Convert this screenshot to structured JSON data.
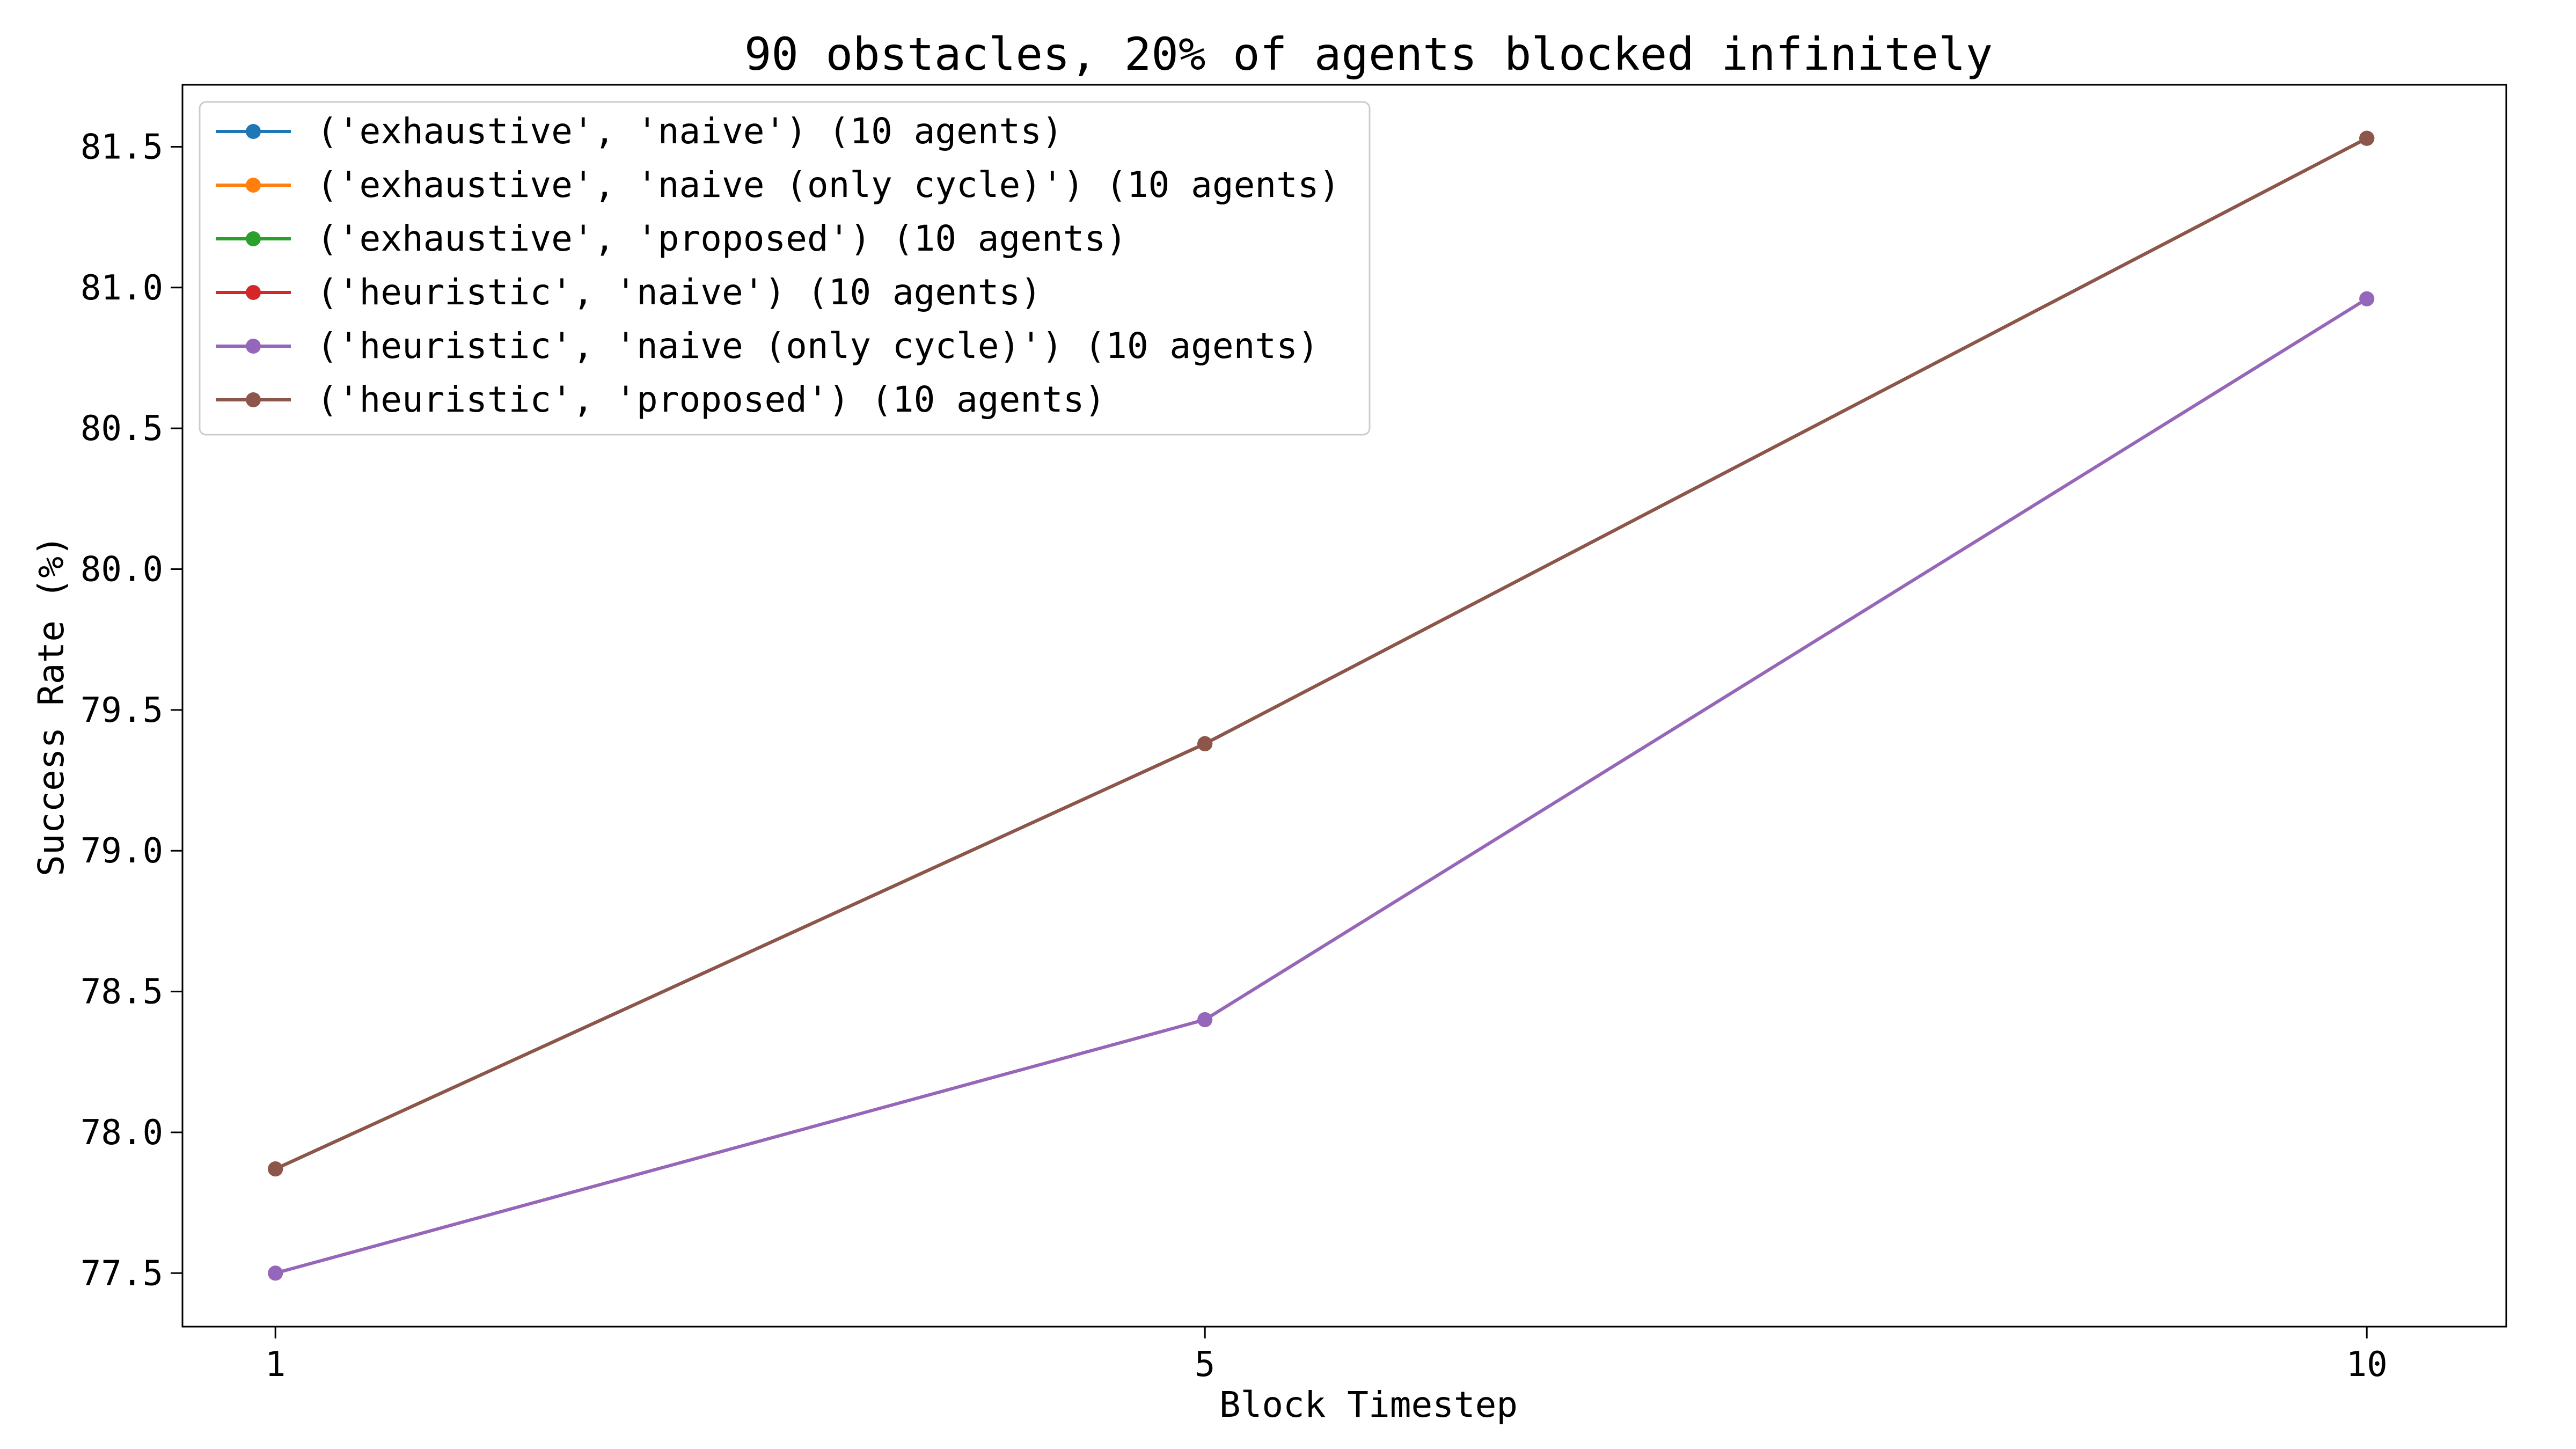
{
  "chart_data": {
    "type": "line",
    "title": "90 obstacles, 20% of agents blocked infinitely",
    "xlabel": "Block Timestep",
    "ylabel": "Success Rate (%)",
    "x": [
      1,
      5,
      10
    ],
    "x_ticks": [
      "1",
      "5",
      "10"
    ],
    "xlim": [
      0.6,
      10.6
    ],
    "y_ticks": [
      "77.5",
      "78.0",
      "78.5",
      "79.0",
      "79.5",
      "80.0",
      "80.5",
      "81.0",
      "81.5"
    ],
    "y_tick_values": [
      77.5,
      78.0,
      78.5,
      79.0,
      79.5,
      80.0,
      80.5,
      81.0,
      81.5
    ],
    "ylim": [
      77.31,
      81.72
    ],
    "grid": false,
    "legend_position": "top-left",
    "series": [
      {
        "name": "('exhaustive', 'naive') (10 agents)",
        "color": "#1f77b4",
        "values": [
          77.87,
          79.38,
          81.53
        ]
      },
      {
        "name": "('exhaustive', 'naive (only cycle)') (10 agents)",
        "color": "#ff7f0e",
        "values": [
          77.5,
          78.4,
          80.96
        ]
      },
      {
        "name": "('exhaustive', 'proposed') (10 agents)",
        "color": "#2ca02c",
        "values": [
          77.87,
          79.38,
          81.53
        ]
      },
      {
        "name": "('heuristic', 'naive') (10 agents)",
        "color": "#d62728",
        "values": [
          77.87,
          79.38,
          81.53
        ]
      },
      {
        "name": "('heuristic', 'naive (only cycle)') (10 agents)",
        "color": "#9467bd",
        "values": [
          77.5,
          78.4,
          80.96
        ]
      },
      {
        "name": "('heuristic', 'proposed') (10 agents)",
        "color": "#8c564b",
        "values": [
          77.87,
          79.38,
          81.53
        ]
      }
    ]
  }
}
